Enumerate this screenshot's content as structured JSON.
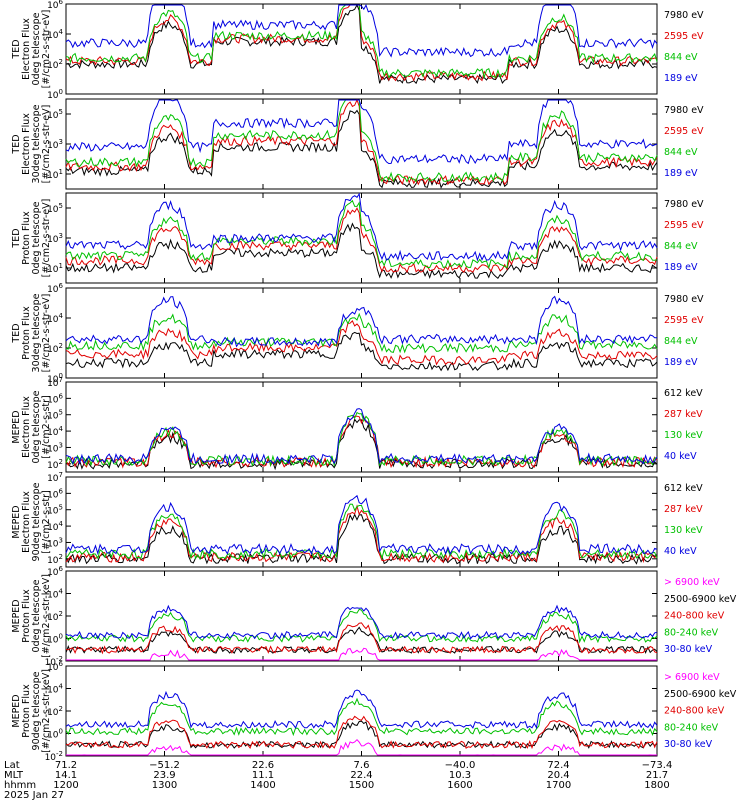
{
  "chart_data": [
    {
      "type": "line",
      "ylabel": [
        "TED",
        "Electron Flux",
        "0deg telescope",
        "[#/cm2-s-str-eV]"
      ],
      "ylim_exp": [
        0,
        6
      ],
      "yticks": [
        0,
        2,
        4,
        6
      ],
      "ylog": true,
      "series": [
        {
          "name": "7980 eV",
          "color": "#000000",
          "base": [
            2.0,
            3.5,
            1.0,
            2.0
          ],
          "bumps": [
            [
              26,
              2.6
            ],
            [
              74,
              2.3
            ],
            [
              125,
              2.3
            ]
          ]
        },
        {
          "name": "2595 eV",
          "color": "#e00000",
          "base": [
            2.2,
            3.7,
            1.2,
            2.2
          ],
          "bumps": [
            [
              26,
              2.8
            ],
            [
              74,
              2.5
            ],
            [
              125,
              2.5
            ]
          ]
        },
        {
          "name": "844 eV",
          "color": "#00c000",
          "base": [
            2.4,
            3.9,
            1.4,
            2.4
          ],
          "bumps": [
            [
              26,
              3.0
            ],
            [
              74,
              2.7
            ],
            [
              125,
              2.7
            ]
          ]
        },
        {
          "name": "189 eV",
          "color": "#0000e0",
          "base": [
            3.4,
            4.6,
            2.8,
            3.4
          ],
          "bumps": [
            [
              26,
              3.6
            ],
            [
              74,
              3.3
            ],
            [
              125,
              3.3
            ]
          ]
        }
      ]
    },
    {
      "type": "line",
      "ylabel": [
        "TED",
        "Electron Flux",
        "30deg telescope",
        "[#/cm2-s-str-eV]"
      ],
      "ylim_exp": [
        0,
        6
      ],
      "yticks": [
        1,
        3,
        5
      ],
      "ylog": true,
      "series": [
        {
          "name": "7980 eV",
          "color": "#000000",
          "base": [
            1.2,
            2.8,
            0.4,
            1.5
          ],
          "bumps": [
            [
              26,
              2.3
            ],
            [
              74,
              2.3
            ],
            [
              125,
              2.3
            ]
          ]
        },
        {
          "name": "2595 eV",
          "color": "#e00000",
          "base": [
            1.5,
            3.2,
            0.6,
            1.8
          ],
          "bumps": [
            [
              26,
              2.6
            ],
            [
              74,
              2.6
            ],
            [
              125,
              2.6
            ]
          ]
        },
        {
          "name": "844 eV",
          "color": "#00c000",
          "base": [
            1.8,
            3.6,
            0.8,
            2.1
          ],
          "bumps": [
            [
              26,
              2.9
            ],
            [
              74,
              2.9
            ],
            [
              125,
              2.9
            ]
          ]
        },
        {
          "name": "189 eV",
          "color": "#0000e0",
          "base": [
            2.8,
            4.4,
            2.0,
            3.0
          ],
          "bumps": [
            [
              26,
              3.4
            ],
            [
              74,
              3.4
            ],
            [
              125,
              3.4
            ]
          ]
        }
      ]
    },
    {
      "type": "line",
      "ylabel": [
        "TED",
        "Proton Flux",
        "0deg telescope",
        "[#/cm2-s-str-eV]"
      ],
      "ylim_exp": [
        0,
        6
      ],
      "yticks": [
        1,
        3,
        5
      ],
      "ylog": true,
      "series": [
        {
          "name": "7980 eV",
          "color": "#000000",
          "base": [
            1.0,
            2.0,
            0.6,
            1.0
          ],
          "bumps": [
            [
              26,
              1.6
            ],
            [
              74,
              1.8
            ],
            [
              125,
              1.6
            ]
          ]
        },
        {
          "name": "2595 eV",
          "color": "#e00000",
          "base": [
            1.5,
            2.5,
            1.0,
            1.5
          ],
          "bumps": [
            [
              26,
              2.1
            ],
            [
              74,
              2.3
            ],
            [
              125,
              2.1
            ]
          ]
        },
        {
          "name": "844 eV",
          "color": "#00c000",
          "base": [
            1.8,
            2.8,
            1.3,
            1.8
          ],
          "bumps": [
            [
              26,
              2.4
            ],
            [
              74,
              2.6
            ],
            [
              125,
              2.4
            ]
          ]
        },
        {
          "name": "189 eV",
          "color": "#0000e0",
          "base": [
            2.5,
            3.0,
            1.8,
            2.5
          ],
          "bumps": [
            [
              26,
              2.7
            ],
            [
              74,
              2.9
            ],
            [
              125,
              2.7
            ]
          ]
        }
      ]
    },
    {
      "type": "line",
      "ylabel": [
        "TED",
        "Proton Flux",
        "30deg telescope",
        "[#/cm2-s-str-eV]"
      ],
      "ylim_exp": [
        0,
        6
      ],
      "yticks": [
        0,
        2,
        4,
        6
      ],
      "ylog": true,
      "series": [
        {
          "name": "7980 eV",
          "color": "#000000",
          "base": [
            1.0,
            1.6,
            0.8,
            1.0
          ],
          "bumps": [
            [
              26,
              1.2
            ],
            [
              74,
              1.3
            ],
            [
              125,
              1.2
            ]
          ]
        },
        {
          "name": "2595 eV",
          "color": "#e00000",
          "base": [
            1.6,
            2.0,
            1.2,
            1.5
          ],
          "bumps": [
            [
              26,
              1.5
            ],
            [
              74,
              1.6
            ],
            [
              125,
              1.5
            ]
          ]
        },
        {
          "name": "844 eV",
          "color": "#00c000",
          "base": [
            2.2,
            2.4,
            2.0,
            2.2
          ],
          "bumps": [
            [
              26,
              1.8
            ],
            [
              74,
              1.7
            ],
            [
              125,
              1.8
            ]
          ]
        },
        {
          "name": "189 eV",
          "color": "#0000e0",
          "base": [
            2.6,
            2.4,
            2.6,
            2.6
          ],
          "bumps": [
            [
              26,
              2.6
            ],
            [
              74,
              2.1
            ],
            [
              125,
              2.6
            ]
          ]
        }
      ]
    },
    {
      "type": "line",
      "ylabel": [
        "MEPED",
        "Electron Flux",
        "0deg telescope",
        "[#/cm2-s-str]"
      ],
      "ylim_exp": [
        1.5,
        7
      ],
      "yticks": [
        2,
        3,
        4,
        5,
        6,
        7
      ],
      "ylog": true,
      "series": [
        {
          "name": "612 keV",
          "color": "#000000",
          "base": [
            2.0,
            2.0,
            2.0,
            2.0
          ],
          "bumps": [
            [
              26,
              1.6
            ],
            [
              74,
              2.5
            ],
            [
              125,
              1.6
            ]
          ]
        },
        {
          "name": "287 keV",
          "color": "#e00000",
          "base": [
            2.1,
            2.1,
            2.1,
            2.1
          ],
          "bumps": [
            [
              26,
              1.7
            ],
            [
              74,
              2.6
            ],
            [
              125,
              1.7
            ]
          ]
        },
        {
          "name": "130 keV",
          "color": "#00c000",
          "base": [
            2.2,
            2.2,
            2.2,
            2.2
          ],
          "bumps": [
            [
              26,
              1.8
            ],
            [
              74,
              2.7
            ],
            [
              125,
              1.8
            ]
          ]
        },
        {
          "name": "40 keV",
          "color": "#0000e0",
          "base": [
            2.3,
            2.3,
            2.3,
            2.3
          ],
          "bumps": [
            [
              26,
              1.9
            ],
            [
              74,
              2.8
            ],
            [
              125,
              1.9
            ]
          ]
        }
      ]
    },
    {
      "type": "line",
      "ylabel": [
        "MEPED",
        "Electron Flux",
        "90deg telescope",
        "[#/cm2-s-str]"
      ],
      "ylim_exp": [
        1.5,
        7
      ],
      "yticks": [
        2,
        3,
        4,
        5,
        6,
        7
      ],
      "ylog": true,
      "series": [
        {
          "name": "612 keV",
          "color": "#000000",
          "base": [
            2.0,
            2.0,
            2.0,
            2.0
          ],
          "bumps": [
            [
              26,
              1.8
            ],
            [
              74,
              2.6
            ],
            [
              125,
              1.8
            ]
          ]
        },
        {
          "name": "287 keV",
          "color": "#e00000",
          "base": [
            2.1,
            2.1,
            2.1,
            2.1
          ],
          "bumps": [
            [
              26,
              2.2
            ],
            [
              74,
              2.9
            ],
            [
              125,
              2.2
            ]
          ]
        },
        {
          "name": "130 keV",
          "color": "#00c000",
          "base": [
            2.3,
            2.3,
            2.3,
            2.3
          ],
          "bumps": [
            [
              26,
              2.4
            ],
            [
              74,
              3.0
            ],
            [
              125,
              2.4
            ]
          ]
        },
        {
          "name": "40 keV",
          "color": "#0000e0",
          "base": [
            2.6,
            2.6,
            2.6,
            2.6
          ],
          "bumps": [
            [
              26,
              2.6
            ],
            [
              74,
              3.1
            ],
            [
              125,
              2.6
            ]
          ]
        }
      ]
    },
    {
      "type": "line",
      "ylabel": [
        "MEPED",
        "Proton Flux",
        "0deg telescope",
        "[#/cm2-s-str-keV]"
      ],
      "ylim_exp": [
        -2,
        6
      ],
      "yticks": [
        -2,
        0,
        2,
        4,
        6
      ],
      "ylog": true,
      "series": [
        {
          "name": "> 6900 keV",
          "color": "#ff00ff",
          "base": [
            -2.2,
            -2.2,
            -2.2,
            -2.2
          ],
          "bumps": [
            [
              26,
              0.9
            ],
            [
              74,
              1.2
            ],
            [
              125,
              0.9
            ]
          ]
        },
        {
          "name": "2500-6900 keV",
          "color": "#000000",
          "base": [
            -1.0,
            -1.0,
            -1.0,
            -1.0
          ],
          "bumps": [
            [
              26,
              1.4
            ],
            [
              74,
              1.7
            ],
            [
              125,
              1.4
            ]
          ]
        },
        {
          "name": "240-800 keV",
          "color": "#e00000",
          "base": [
            -1.0,
            -1.0,
            -1.0,
            -1.0
          ],
          "bumps": [
            [
              26,
              1.9
            ],
            [
              74,
              2.2
            ],
            [
              125,
              1.9
            ]
          ]
        },
        {
          "name": "80-240 keV",
          "color": "#00c000",
          "base": [
            0.0,
            0.0,
            0.0,
            0.0
          ],
          "bumps": [
            [
              26,
              2.1
            ],
            [
              74,
              2.4
            ],
            [
              125,
              2.1
            ]
          ]
        },
        {
          "name": "30-80 keV",
          "color": "#0000e0",
          "base": [
            0.3,
            0.3,
            0.3,
            0.3
          ],
          "bumps": [
            [
              26,
              2.3
            ],
            [
              74,
              2.5
            ],
            [
              125,
              2.3
            ]
          ]
        }
      ]
    },
    {
      "type": "line",
      "ylabel": [
        "MEPED",
        "Proton Flux",
        "90deg telescope",
        "[#/cm2-s-str-keV]"
      ],
      "ylim_exp": [
        -2,
        6
      ],
      "yticks": [
        -2,
        0,
        2,
        4,
        6
      ],
      "ylog": true,
      "series": [
        {
          "name": "> 6900 keV",
          "color": "#ff00ff",
          "base": [
            -2.2,
            -2.2,
            -2.2,
            -2.2
          ],
          "bumps": [
            [
              26,
              1.0
            ],
            [
              74,
              1.4
            ],
            [
              125,
              1.0
            ]
          ]
        },
        {
          "name": "2500-6900 keV",
          "color": "#000000",
          "base": [
            -1.0,
            -1.0,
            -1.0,
            -1.0
          ],
          "bumps": [
            [
              26,
              1.6
            ],
            [
              74,
              1.9
            ],
            [
              125,
              1.6
            ]
          ]
        },
        {
          "name": "240-800 keV",
          "color": "#e00000",
          "base": [
            -1.0,
            -1.0,
            -1.0,
            -1.0
          ],
          "bumps": [
            [
              26,
              2.1
            ],
            [
              74,
              2.4
            ],
            [
              125,
              2.1
            ]
          ]
        },
        {
          "name": "80-240 keV",
          "color": "#00c000",
          "base": [
            0.2,
            0.2,
            0.2,
            0.2
          ],
          "bumps": [
            [
              26,
              2.4
            ],
            [
              74,
              2.6
            ],
            [
              125,
              2.4
            ]
          ]
        },
        {
          "name": "30-80 keV",
          "color": "#0000e0",
          "base": [
            0.8,
            0.8,
            0.8,
            0.8
          ],
          "bumps": [
            [
              26,
              2.6
            ],
            [
              74,
              2.8
            ],
            [
              125,
              2.6
            ]
          ]
        }
      ]
    }
  ],
  "x_axis": {
    "row_labels": [
      "Lat",
      "MLT",
      "hhmm"
    ],
    "ticks": [
      {
        "lat": "71.2",
        "mlt": "14.1",
        "hhmm": "1200"
      },
      {
        "lat": "−51.2",
        "mlt": "23.9",
        "hhmm": "1300"
      },
      {
        "lat": "22.6",
        "mlt": "11.1",
        "hhmm": "1400"
      },
      {
        "lat": "7.6",
        "mlt": "22.4",
        "hhmm": "1500"
      },
      {
        "lat": "−40.0",
        "mlt": "10.3",
        "hhmm": "1600"
      },
      {
        "lat": "72.4",
        "mlt": "20.4",
        "hhmm": "1700"
      },
      {
        "lat": "−73.4",
        "mlt": "21.7",
        "hhmm": "1800"
      }
    ],
    "date": "2025 Jan 27"
  }
}
